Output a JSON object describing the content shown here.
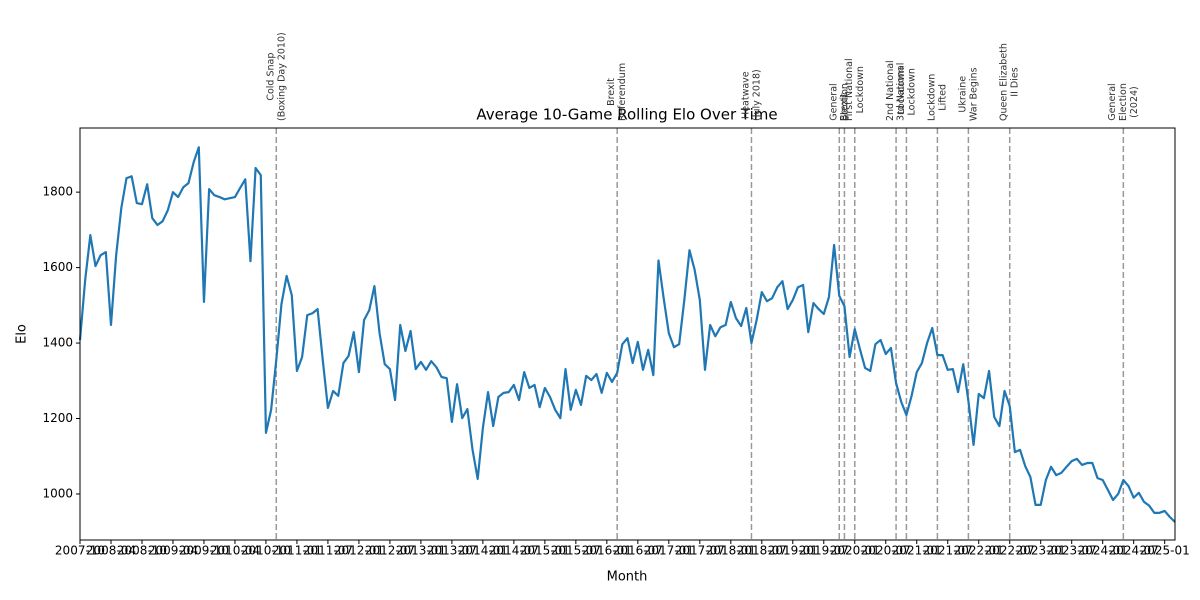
{
  "chart_data": {
    "type": "line",
    "title": "Average 10-Game Rolling Elo Over Time",
    "x_label": "Month",
    "y_label": "Elo",
    "categories": [
      "2007-10",
      null,
      null,
      null,
      null,
      null,
      "2008-04",
      null,
      null,
      null,
      null,
      null,
      "2008-10",
      null,
      null,
      null,
      null,
      null,
      "2009-04",
      null,
      null,
      null,
      null,
      null,
      "2009-10",
      null,
      null,
      null,
      null,
      null,
      "2010-04",
      null,
      null,
      null,
      null,
      null,
      "2010-10",
      null,
      null,
      null,
      null,
      null,
      "2011-01",
      null,
      null,
      null,
      null,
      null,
      "2011-07",
      null,
      null,
      null,
      null,
      null,
      "2012-01",
      null,
      null,
      null,
      null,
      null,
      "2012-07",
      null,
      null,
      null,
      null,
      null,
      "2013-01",
      null,
      null,
      null,
      null,
      null,
      "2013-07",
      null,
      null,
      null,
      null,
      null,
      "2014-01",
      null,
      null,
      null,
      null,
      null,
      "2014-07",
      null,
      null,
      null,
      null,
      null,
      "2015-01",
      null,
      null,
      null,
      null,
      null,
      "2015-07",
      null,
      null,
      null,
      null,
      null,
      "2016-01",
      null,
      null,
      null,
      null,
      null,
      "2016-07",
      null,
      null,
      null,
      null,
      null,
      "2017-01",
      null,
      null,
      null,
      null,
      null,
      "2017-07",
      null,
      null,
      null,
      null,
      null,
      "2018-01",
      null,
      null,
      null,
      null,
      null,
      "2018-07",
      null,
      null,
      null,
      null,
      null,
      "2019-01",
      null,
      null,
      null,
      null,
      null,
      "2019-07",
      null,
      null,
      null,
      null,
      null,
      "2020-01",
      null,
      null,
      null,
      null,
      null,
      "2020-07",
      null,
      null,
      null,
      null,
      null,
      "2021-01",
      null,
      null,
      null,
      null,
      null,
      "2021-07",
      null,
      null,
      null,
      null,
      null,
      "2022-01",
      null,
      null,
      null,
      null,
      null,
      "2022-07",
      null,
      null,
      null,
      null,
      null,
      "2023-01",
      null,
      null,
      null,
      null,
      null,
      "2023-07",
      null,
      null,
      null,
      null,
      null,
      "2024-01",
      null,
      null,
      null,
      null,
      null,
      "2024-07",
      null,
      null,
      null,
      null,
      null,
      "2025-01",
      null,
      null
    ],
    "series": [
      {
        "name": "Elo",
        "color": "#1f77b4",
        "values": [
          1408,
          1567,
          1686,
          1604,
          1633,
          1641,
          1448,
          1633,
          1758,
          1837,
          1842,
          1771,
          1768,
          1821,
          1731,
          1713,
          1723,
          1752,
          1800,
          1787,
          1813,
          1824,
          1879,
          1919,
          1509,
          1808,
          1792,
          1787,
          1781,
          1784,
          1787,
          1811,
          1834,
          1617,
          1864,
          1845,
          1162,
          1223,
          1355,
          1503,
          1578,
          1527,
          1326,
          1363,
          1474,
          1479,
          1490,
          1355,
          1228,
          1273,
          1260,
          1347,
          1366,
          1429,
          1323,
          1461,
          1487,
          1551,
          1426,
          1344,
          1331,
          1249,
          1448,
          1379,
          1432,
          1331,
          1350,
          1329,
          1352,
          1336,
          1310,
          1307,
          1191,
          1291,
          1201,
          1225,
          1117,
          1040,
          1175,
          1270,
          1180,
          1257,
          1268,
          1270,
          1289,
          1249,
          1323,
          1281,
          1289,
          1230,
          1281,
          1257,
          1223,
          1201,
          1331,
          1223,
          1276,
          1236,
          1313,
          1302,
          1318,
          1268,
          1321,
          1297,
          1321,
          1397,
          1413,
          1347,
          1403,
          1329,
          1382,
          1315,
          1619,
          1519,
          1426,
          1389,
          1397,
          1514,
          1646,
          1594,
          1514,
          1329,
          1448,
          1418,
          1442,
          1448,
          1509,
          1466,
          1445,
          1493,
          1400,
          1461,
          1535,
          1511,
          1519,
          1548,
          1564,
          1490,
          1514,
          1548,
          1554,
          1429,
          1506,
          1490,
          1477,
          1522,
          1660,
          1525,
          1498,
          1363,
          1437,
          1384,
          1334,
          1326,
          1397,
          1408,
          1371,
          1387,
          1294,
          1244,
          1209,
          1260,
          1323,
          1347,
          1400,
          1440,
          1368,
          1368,
          1329,
          1331,
          1270,
          1344,
          1246,
          1130,
          1265,
          1254,
          1326,
          1204,
          1180,
          1273,
          1233,
          1111,
          1117,
          1074,
          1045,
          971,
          971,
          1037,
          1072,
          1050,
          1056,
          1072,
          1087,
          1093,
          1077,
          1082,
          1082,
          1042,
          1037,
          1011,
          984,
          1000,
          1037,
          1021,
          990,
          1003,
          979,
          969,
          950,
          950,
          955,
          939,
          926
        ]
      }
    ],
    "ylim": [
      878,
      1970
    ],
    "yticks": [
      1000,
      1200,
      1400,
      1600,
      1800
    ],
    "events": [
      {
        "x": 38,
        "lines": [
          "Cold Snap",
          "(Boxing Day 2010)"
        ]
      },
      {
        "x": 104,
        "lines": [
          "Brexit",
          "Referendum"
        ]
      },
      {
        "x": 130,
        "lines": [
          "Heatwave",
          "(July 2018)"
        ]
      },
      {
        "x": 147,
        "lines": [
          "General",
          "Election"
        ]
      },
      {
        "x": 148,
        "lines": [
          "Brexit"
        ]
      },
      {
        "x": 150,
        "lines": [
          "First National",
          "Lockdown"
        ]
      },
      {
        "x": 158,
        "lines": [
          "2nd National",
          "Lockdown"
        ]
      },
      {
        "x": 160,
        "lines": [
          "3rd National",
          "Lockdown"
        ]
      },
      {
        "x": 166,
        "lines": [
          "Lockdown",
          "Lifted"
        ]
      },
      {
        "x": 172,
        "lines": [
          "Ukraine",
          "War Begins"
        ]
      },
      {
        "x": 180,
        "lines": [
          "Queen Elizabeth",
          "II Dies"
        ]
      },
      {
        "x": 202,
        "lines": [
          "General",
          "Election",
          "(2024)"
        ]
      }
    ],
    "event_color": "#999999"
  }
}
